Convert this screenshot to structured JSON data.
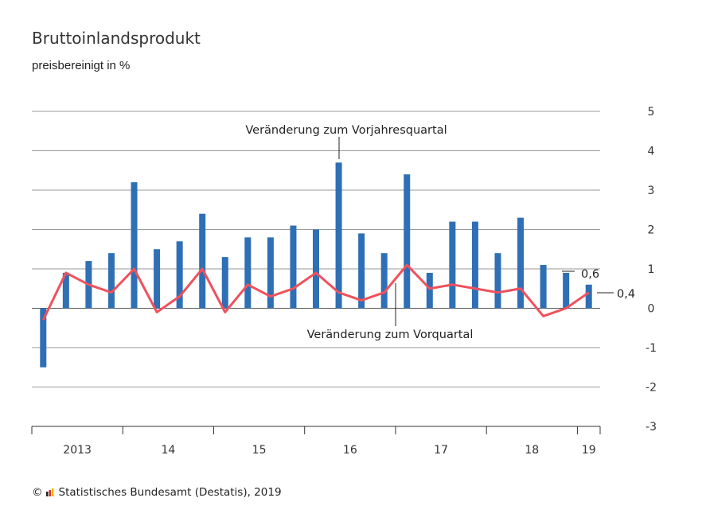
{
  "title": "Bruttoinlandsprodukt",
  "subtitle": "preisbereinigt in %",
  "footer": {
    "copyright": "©",
    "text": "Statistisches Bundesamt (Destatis), 2019"
  },
  "colors": {
    "bars": "#2e6fb5",
    "line": "#f0515c",
    "grid": "#9a9a9a"
  },
  "chart_data": {
    "type": "bar",
    "title": "Bruttoinlandsprodukt",
    "subtitle": "preisbereinigt in %",
    "ylim": [
      -3,
      5
    ],
    "yticks": [
      5,
      4,
      3,
      2,
      1,
      0,
      -1,
      -2,
      -3
    ],
    "grid": true,
    "year_labels": [
      "2013",
      "14",
      "15",
      "16",
      "17",
      "18",
      "19"
    ],
    "series": [
      {
        "name": "Veränderung zum Vorjahresquartal",
        "type": "bar",
        "values": [
          -1.5,
          0.9,
          1.2,
          1.4,
          3.2,
          1.5,
          1.7,
          2.4,
          1.3,
          1.8,
          1.8,
          2.1,
          2.0,
          3.7,
          1.9,
          1.4,
          3.4,
          0.9,
          2.2,
          2.2,
          1.4,
          2.3,
          1.1,
          0.9,
          0.6
        ]
      },
      {
        "name": "Veränderung zum Vorquartal",
        "type": "line",
        "values": [
          -0.3,
          0.9,
          0.6,
          0.4,
          1.0,
          -0.1,
          0.3,
          1.0,
          -0.1,
          0.6,
          0.3,
          0.5,
          0.9,
          0.4,
          0.2,
          0.4,
          1.1,
          0.5,
          0.6,
          0.5,
          0.4,
          0.5,
          -0.2,
          0.0,
          0.4
        ]
      }
    ],
    "annotations": {
      "last_bar_label": "0,6",
      "last_line_label": "0,4"
    }
  }
}
